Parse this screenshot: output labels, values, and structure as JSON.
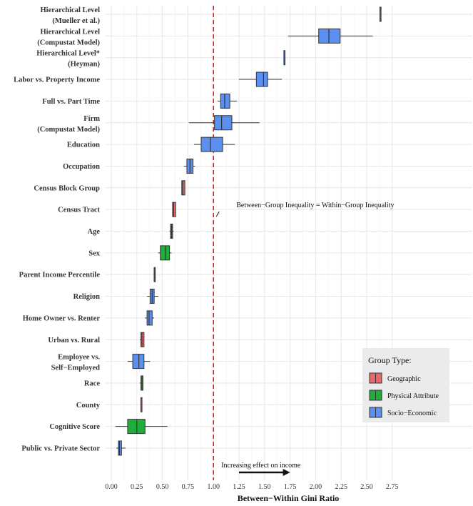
{
  "chart_data": {
    "type": "boxplot",
    "xlabel": "Between−Within Gini Ratio",
    "ylabel": "",
    "xlim": [
      -0.05,
      2.8
    ],
    "x_ticks": [
      "0.00",
      "0.25",
      "0.50",
      "0.75",
      "1.00",
      "1.25",
      "1.50",
      "1.75",
      "2.00",
      "2.25",
      "2.50",
      "2.75"
    ],
    "reference_line": {
      "x": 1.0,
      "color": "#e02020",
      "style": "dashed"
    },
    "annotation_reference": {
      "text": "Between−Group Inequality = Within−Group Inequality",
      "x": 1.0
    },
    "annotation_arrow": {
      "text": "Increasing effect on income",
      "from": 1.25,
      "to": 1.75
    },
    "grid": true,
    "legend": {
      "title": "Group Type:",
      "placement": "bottom-right",
      "items": [
        {
          "label": "Geographic",
          "color": "#e8686c"
        },
        {
          "label": "Physical Attribute",
          "color": "#1fae3b"
        },
        {
          "label": "Socio−Economic",
          "color": "#5b8ff0"
        }
      ]
    },
    "categories": [
      {
        "label": [
          "Hierarchical Level",
          "(Mueller et al.)"
        ],
        "group": "Socio−Economic",
        "wmin": 2.63,
        "q1": 2.63,
        "median": 2.63,
        "q3": 2.63,
        "wmax": 2.63
      },
      {
        "label": [
          "Hierarchical Level",
          "(Compustat Model)"
        ],
        "group": "Socio−Economic",
        "wmin": 1.73,
        "q1": 2.03,
        "median": 2.13,
        "q3": 2.24,
        "wmax": 2.56
      },
      {
        "label": [
          "Hierarchical Level*",
          "(Heyman)"
        ],
        "group": "Socio−Economic",
        "wmin": 1.69,
        "q1": 1.69,
        "median": 1.69,
        "q3": 1.69,
        "wmax": 1.69
      },
      {
        "label": [
          "Labor vs. Property Income"
        ],
        "group": "Socio−Economic",
        "wmin": 1.25,
        "q1": 1.42,
        "median": 1.49,
        "q3": 1.53,
        "wmax": 1.67
      },
      {
        "label": [
          "Full vs. Part Time"
        ],
        "group": "Socio−Economic",
        "wmin": 1.04,
        "q1": 1.07,
        "median": 1.11,
        "q3": 1.16,
        "wmax": 1.23
      },
      {
        "label": [
          "Firm",
          "(Compustat Model)"
        ],
        "group": "Socio−Economic",
        "wmin": 0.76,
        "q1": 1.01,
        "median": 1.08,
        "q3": 1.18,
        "wmax": 1.45
      },
      {
        "label": [
          "Education"
        ],
        "group": "Socio−Economic",
        "wmin": 0.81,
        "q1": 0.88,
        "median": 0.97,
        "q3": 1.09,
        "wmax": 1.21
      },
      {
        "label": [
          "Occupation"
        ],
        "group": "Socio−Economic",
        "wmin": 0.71,
        "q1": 0.74,
        "median": 0.77,
        "q3": 0.8,
        "wmax": 0.82
      },
      {
        "label": [
          "Census Block Group"
        ],
        "group": "Geographic",
        "wmin": 0.69,
        "q1": 0.69,
        "median": 0.7,
        "q3": 0.72,
        "wmax": 0.72
      },
      {
        "label": [
          "Census Tract"
        ],
        "group": "Geographic",
        "wmin": 0.6,
        "q1": 0.6,
        "median": 0.61,
        "q3": 0.63,
        "wmax": 0.63
      },
      {
        "label": [
          "Age"
        ],
        "group": "Physical Attribute",
        "wmin": 0.57,
        "q1": 0.58,
        "median": 0.59,
        "q3": 0.6,
        "wmax": 0.61
      },
      {
        "label": [
          "Sex"
        ],
        "group": "Physical Attribute",
        "wmin": 0.46,
        "q1": 0.48,
        "median": 0.53,
        "q3": 0.57,
        "wmax": 0.59
      },
      {
        "label": [
          "Parent Income Percentile"
        ],
        "group": "Socio−Economic",
        "wmin": 0.42,
        "q1": 0.42,
        "median": 0.42,
        "q3": 0.42,
        "wmax": 0.42
      },
      {
        "label": [
          "Religion"
        ],
        "group": "Socio−Economic",
        "wmin": 0.35,
        "q1": 0.38,
        "median": 0.4,
        "q3": 0.42,
        "wmax": 0.46
      },
      {
        "label": [
          "Home Owner vs. Renter"
        ],
        "group": "Socio−Economic",
        "wmin": 0.33,
        "q1": 0.35,
        "median": 0.37,
        "q3": 0.4,
        "wmax": 0.42
      },
      {
        "label": [
          "Urban vs. Rural"
        ],
        "group": "Geographic",
        "wmin": 0.28,
        "q1": 0.29,
        "median": 0.3,
        "q3": 0.32,
        "wmax": 0.32
      },
      {
        "label": [
          "Employee vs.",
          "Self−Employed"
        ],
        "group": "Socio−Economic",
        "wmin": 0.16,
        "q1": 0.21,
        "median": 0.27,
        "q3": 0.32,
        "wmax": 0.38
      },
      {
        "label": [
          "Race"
        ],
        "group": "Physical Attribute",
        "wmin": 0.28,
        "q1": 0.29,
        "median": 0.3,
        "q3": 0.31,
        "wmax": 0.31
      },
      {
        "label": [
          "County"
        ],
        "group": "Geographic",
        "wmin": 0.29,
        "q1": 0.29,
        "median": 0.29,
        "q3": 0.29,
        "wmax": 0.29
      },
      {
        "label": [
          "Cognitive Score"
        ],
        "group": "Physical Attribute",
        "wmin": 0.04,
        "q1": 0.16,
        "median": 0.25,
        "q3": 0.33,
        "wmax": 0.55
      },
      {
        "label": [
          "Public vs. Private Sector"
        ],
        "group": "Socio−Economic",
        "wmin": 0.05,
        "q1": 0.07,
        "median": 0.08,
        "q3": 0.1,
        "wmax": 0.14
      }
    ]
  }
}
